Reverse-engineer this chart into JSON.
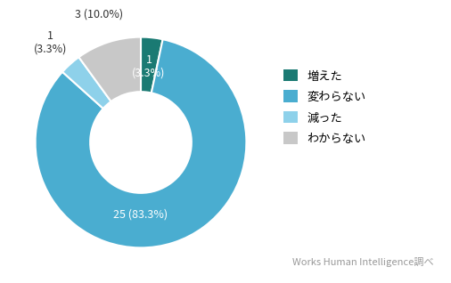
{
  "labels": [
    "増えた",
    "変わらない",
    "減った",
    "わからない"
  ],
  "values": [
    1,
    25,
    1,
    3
  ],
  "colors": [
    "#1a7a73",
    "#4aadd0",
    "#8ed1ea",
    "#c8c8c8"
  ],
  "watermark": "Works Human Intelligence調べ",
  "background_color": "#ffffff",
  "label_fontsize": 9,
  "legend_fontsize": 9.5,
  "watermark_fontsize": 8,
  "donut_width": 0.52,
  "start_angle": 90
}
